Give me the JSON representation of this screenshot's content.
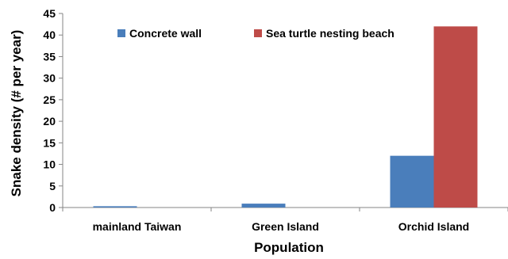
{
  "chart_data": {
    "type": "bar",
    "title": "",
    "xlabel": "Population",
    "ylabel": "Snake density (# per year)",
    "categories": [
      "mainland Taiwan",
      "Green Island",
      "Orchid Island"
    ],
    "series": [
      {
        "name": "Concrete wall",
        "color": "#4a7ebb",
        "values": [
          0.3,
          0.9,
          12
        ]
      },
      {
        "name": "Sea turtle nesting beach",
        "color": "#be4b48",
        "values": [
          0,
          0,
          42
        ]
      }
    ],
    "ylim": [
      0,
      45
    ],
    "yticks": [
      0,
      5,
      10,
      15,
      20,
      25,
      30,
      35,
      40,
      45
    ],
    "grid": false,
    "legend": "top"
  }
}
